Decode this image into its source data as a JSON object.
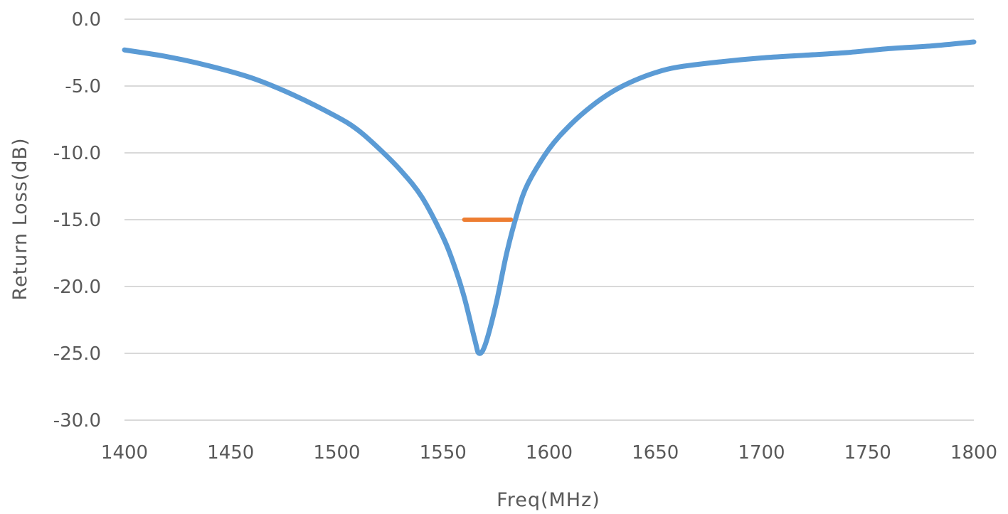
{
  "chart_data": {
    "type": "line",
    "title": "",
    "xlabel": "Freq(MHz)",
    "ylabel": "Return Loss(dB)",
    "xlim": [
      1400,
      1800
    ],
    "ylim": [
      -30,
      0
    ],
    "x_ticks": [
      "1400",
      "1450",
      "1500",
      "1550",
      "1600",
      "1650",
      "1700",
      "1750",
      "1800"
    ],
    "y_ticks": [
      "0.0",
      "-5.0",
      "-10.0",
      "-15.0",
      "-20.0",
      "-25.0",
      "-30.0"
    ],
    "grid": "horizontal",
    "legend": "none",
    "series": [
      {
        "color": "#5b9bd5",
        "points": [
          [
            1400,
            -2.3
          ],
          [
            1420,
            -2.8
          ],
          [
            1440,
            -3.5
          ],
          [
            1460,
            -4.4
          ],
          [
            1480,
            -5.7
          ],
          [
            1500,
            -7.3
          ],
          [
            1510,
            -8.3
          ],
          [
            1520,
            -9.7
          ],
          [
            1530,
            -11.3
          ],
          [
            1540,
            -13.3
          ],
          [
            1550,
            -16.3
          ],
          [
            1555,
            -18.3
          ],
          [
            1560,
            -20.8
          ],
          [
            1565,
            -24.0
          ],
          [
            1567,
            -25.0
          ],
          [
            1570,
            -24.3
          ],
          [
            1575,
            -21.3
          ],
          [
            1580,
            -17.5
          ],
          [
            1585,
            -14.5
          ],
          [
            1590,
            -12.3
          ],
          [
            1600,
            -9.7
          ],
          [
            1610,
            -7.9
          ],
          [
            1620,
            -6.5
          ],
          [
            1630,
            -5.4
          ],
          [
            1640,
            -4.6
          ],
          [
            1650,
            -4.0
          ],
          [
            1660,
            -3.6
          ],
          [
            1680,
            -3.2
          ],
          [
            1700,
            -2.9
          ],
          [
            1720,
            -2.7
          ],
          [
            1740,
            -2.5
          ],
          [
            1760,
            -2.2
          ],
          [
            1780,
            -2.0
          ],
          [
            1800,
            -1.7
          ]
        ]
      },
      {
        "color": "#ed7d31",
        "points": [
          [
            1560,
            -15.0
          ],
          [
            1582,
            -15.0
          ]
        ]
      }
    ]
  }
}
